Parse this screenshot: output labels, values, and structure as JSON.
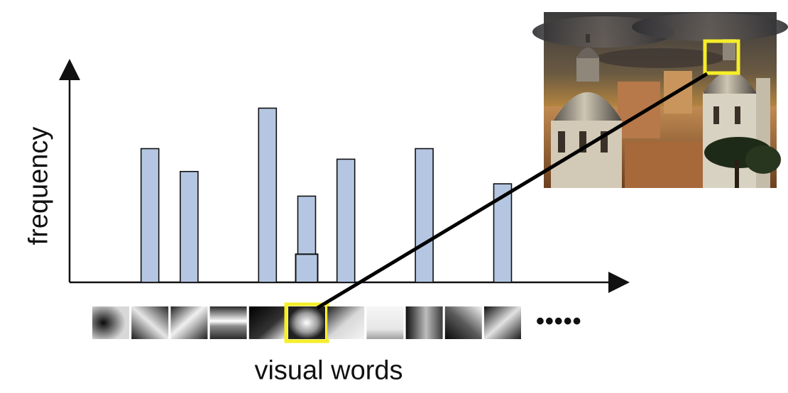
{
  "axes": {
    "y_label": "frequency",
    "x_label": "visual words"
  },
  "more_indicator": "•••••",
  "bars": [
    {
      "word": 1,
      "height": 0.76
    },
    {
      "word": 2,
      "height": 0.63
    },
    {
      "word": 4,
      "height": 0.99
    },
    {
      "word": 5,
      "height": 0.49,
      "inner_highlight": 0.16
    },
    {
      "word": 6,
      "height": 0.7
    },
    {
      "word": 8,
      "height": 0.76
    },
    {
      "word": 10,
      "height": 0.56
    }
  ],
  "visual_words": [
    {
      "index": 0,
      "pattern": "dark-left-blob"
    },
    {
      "index": 1,
      "pattern": "diagonal-light"
    },
    {
      "index": 2,
      "pattern": "diagonal-stripe"
    },
    {
      "index": 3,
      "pattern": "horizontal-bar"
    },
    {
      "index": 4,
      "pattern": "dark-corner"
    },
    {
      "index": 5,
      "pattern": "center-blob",
      "highlighted": true
    },
    {
      "index": 6,
      "pattern": "diagonal-soft"
    },
    {
      "index": 7,
      "pattern": "light-patch"
    },
    {
      "index": 8,
      "pattern": "gradient-right"
    },
    {
      "index": 9,
      "pattern": "dark-diagonal"
    },
    {
      "index": 10,
      "pattern": "corner-light"
    }
  ],
  "photo": {
    "subject": "baroque domes cityscape under cloudy sky",
    "highlight_color": "#f5ee2a"
  },
  "colors": {
    "bar_fill": "#b4c6e2",
    "bar_stroke": "#111111",
    "highlight": "#f5ee2a",
    "connector": "#000000"
  }
}
